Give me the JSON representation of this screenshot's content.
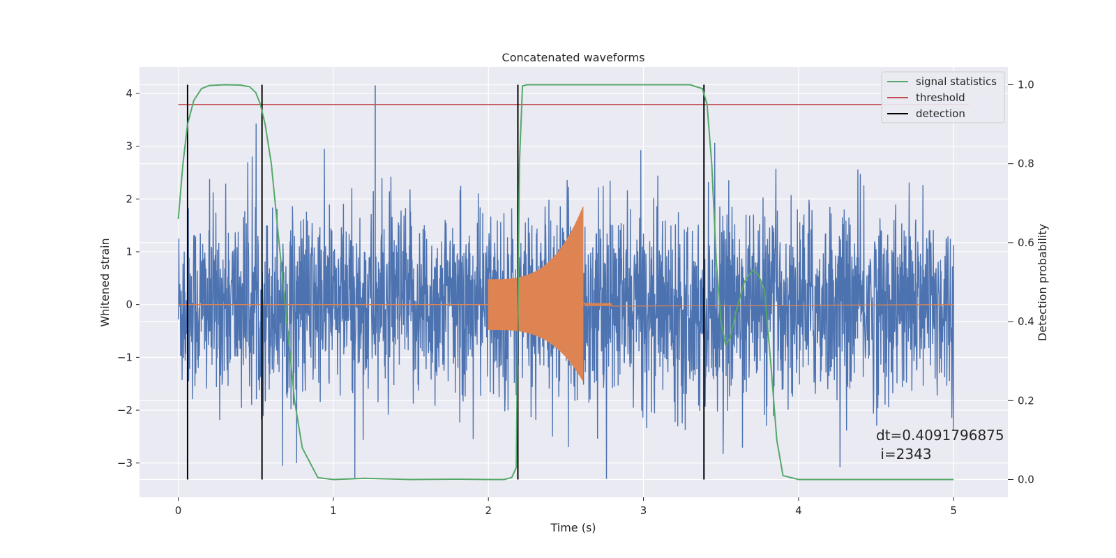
{
  "chart_data": {
    "type": "line",
    "title": "Concatenated waveforms",
    "xlabel": "Time (s)",
    "ylabel": "Whitened strain",
    "y2label": "Detection probability",
    "xlim": [
      -0.25,
      5.35
    ],
    "ylim": [
      -3.65,
      4.5
    ],
    "y2lim": [
      -0.045,
      1.045
    ],
    "xticks": [
      0,
      1,
      2,
      3,
      4,
      5
    ],
    "yticks": [
      -3,
      -2,
      -1,
      0,
      1,
      2,
      3,
      4
    ],
    "yticklabels": [
      "−3",
      "−2",
      "−1",
      "0",
      "1",
      "2",
      "3",
      "4"
    ],
    "y2ticks": [
      0.0,
      0.2,
      0.4,
      0.6,
      0.8,
      1.0
    ],
    "y2ticklabels": [
      "0.0",
      "0.2",
      "0.4",
      "0.6",
      "0.8",
      "1.0"
    ],
    "grid": true,
    "legend_position": "top-right",
    "colors": {
      "background": "#eaeaf2",
      "grid": "#ffffff",
      "strain": "#4c72b0",
      "template": "#dd8452",
      "statistics": "#55a868",
      "threshold": "#c44e52",
      "detection": "#000000"
    },
    "series": [
      {
        "name": "whitened strain",
        "axis": "left",
        "color": "#4c72b0",
        "x_range": [
          0,
          5
        ],
        "envelope_max": 4.15,
        "envelope_min": -3.3
      },
      {
        "name": "injected waveform",
        "axis": "left",
        "color": "#dd8452",
        "x_range": [
          2.0,
          2.61
        ],
        "amplitude_start": 0.48,
        "amplitude_peak": 1.85
      },
      {
        "name": "signal statistics",
        "axis": "right",
        "color": "#55a868",
        "x": [
          0.0,
          0.03,
          0.06,
          0.1,
          0.15,
          0.2,
          0.3,
          0.4,
          0.46,
          0.5,
          0.53,
          0.56,
          0.6,
          0.65,
          0.7,
          0.75,
          0.8,
          0.9,
          1.0,
          1.2,
          1.5,
          1.8,
          2.0,
          2.1,
          2.15,
          2.18,
          2.2,
          2.22,
          2.25,
          2.3,
          2.5,
          3.0,
          3.3,
          3.38,
          3.41,
          3.44,
          3.47,
          3.5,
          3.53,
          3.56,
          3.6,
          3.65,
          3.7,
          3.74,
          3.78,
          3.82,
          3.86,
          3.9,
          4.0,
          4.5,
          5.0
        ],
        "y": [
          0.66,
          0.8,
          0.9,
          0.96,
          0.99,
          0.998,
          1.0,
          0.999,
          0.995,
          0.98,
          0.95,
          0.9,
          0.8,
          0.6,
          0.4,
          0.2,
          0.08,
          0.005,
          0.0,
          0.003,
          0.0,
          0.001,
          0.0,
          0.0,
          0.005,
          0.03,
          0.8,
          0.997,
          1.0,
          1.0,
          1.0,
          1.0,
          1.0,
          0.99,
          0.95,
          0.8,
          0.55,
          0.4,
          0.34,
          0.36,
          0.43,
          0.5,
          0.53,
          0.52,
          0.48,
          0.3,
          0.1,
          0.01,
          0.0,
          0.0,
          0.0
        ]
      },
      {
        "name": "threshold",
        "axis": "right",
        "color": "#c44e52",
        "x": [
          0,
          5.1
        ],
        "y": [
          0.95,
          0.95
        ]
      },
      {
        "name": "detection",
        "axis": "right",
        "color": "#000000",
        "x": [
          0.06,
          0.54,
          2.19,
          3.39
        ],
        "y_range": [
          0.0,
          1.0
        ]
      }
    ],
    "legend": [
      "signal statistics",
      "threshold",
      "detection"
    ],
    "annotation": "dt=0.4091796875\n i=2343"
  }
}
